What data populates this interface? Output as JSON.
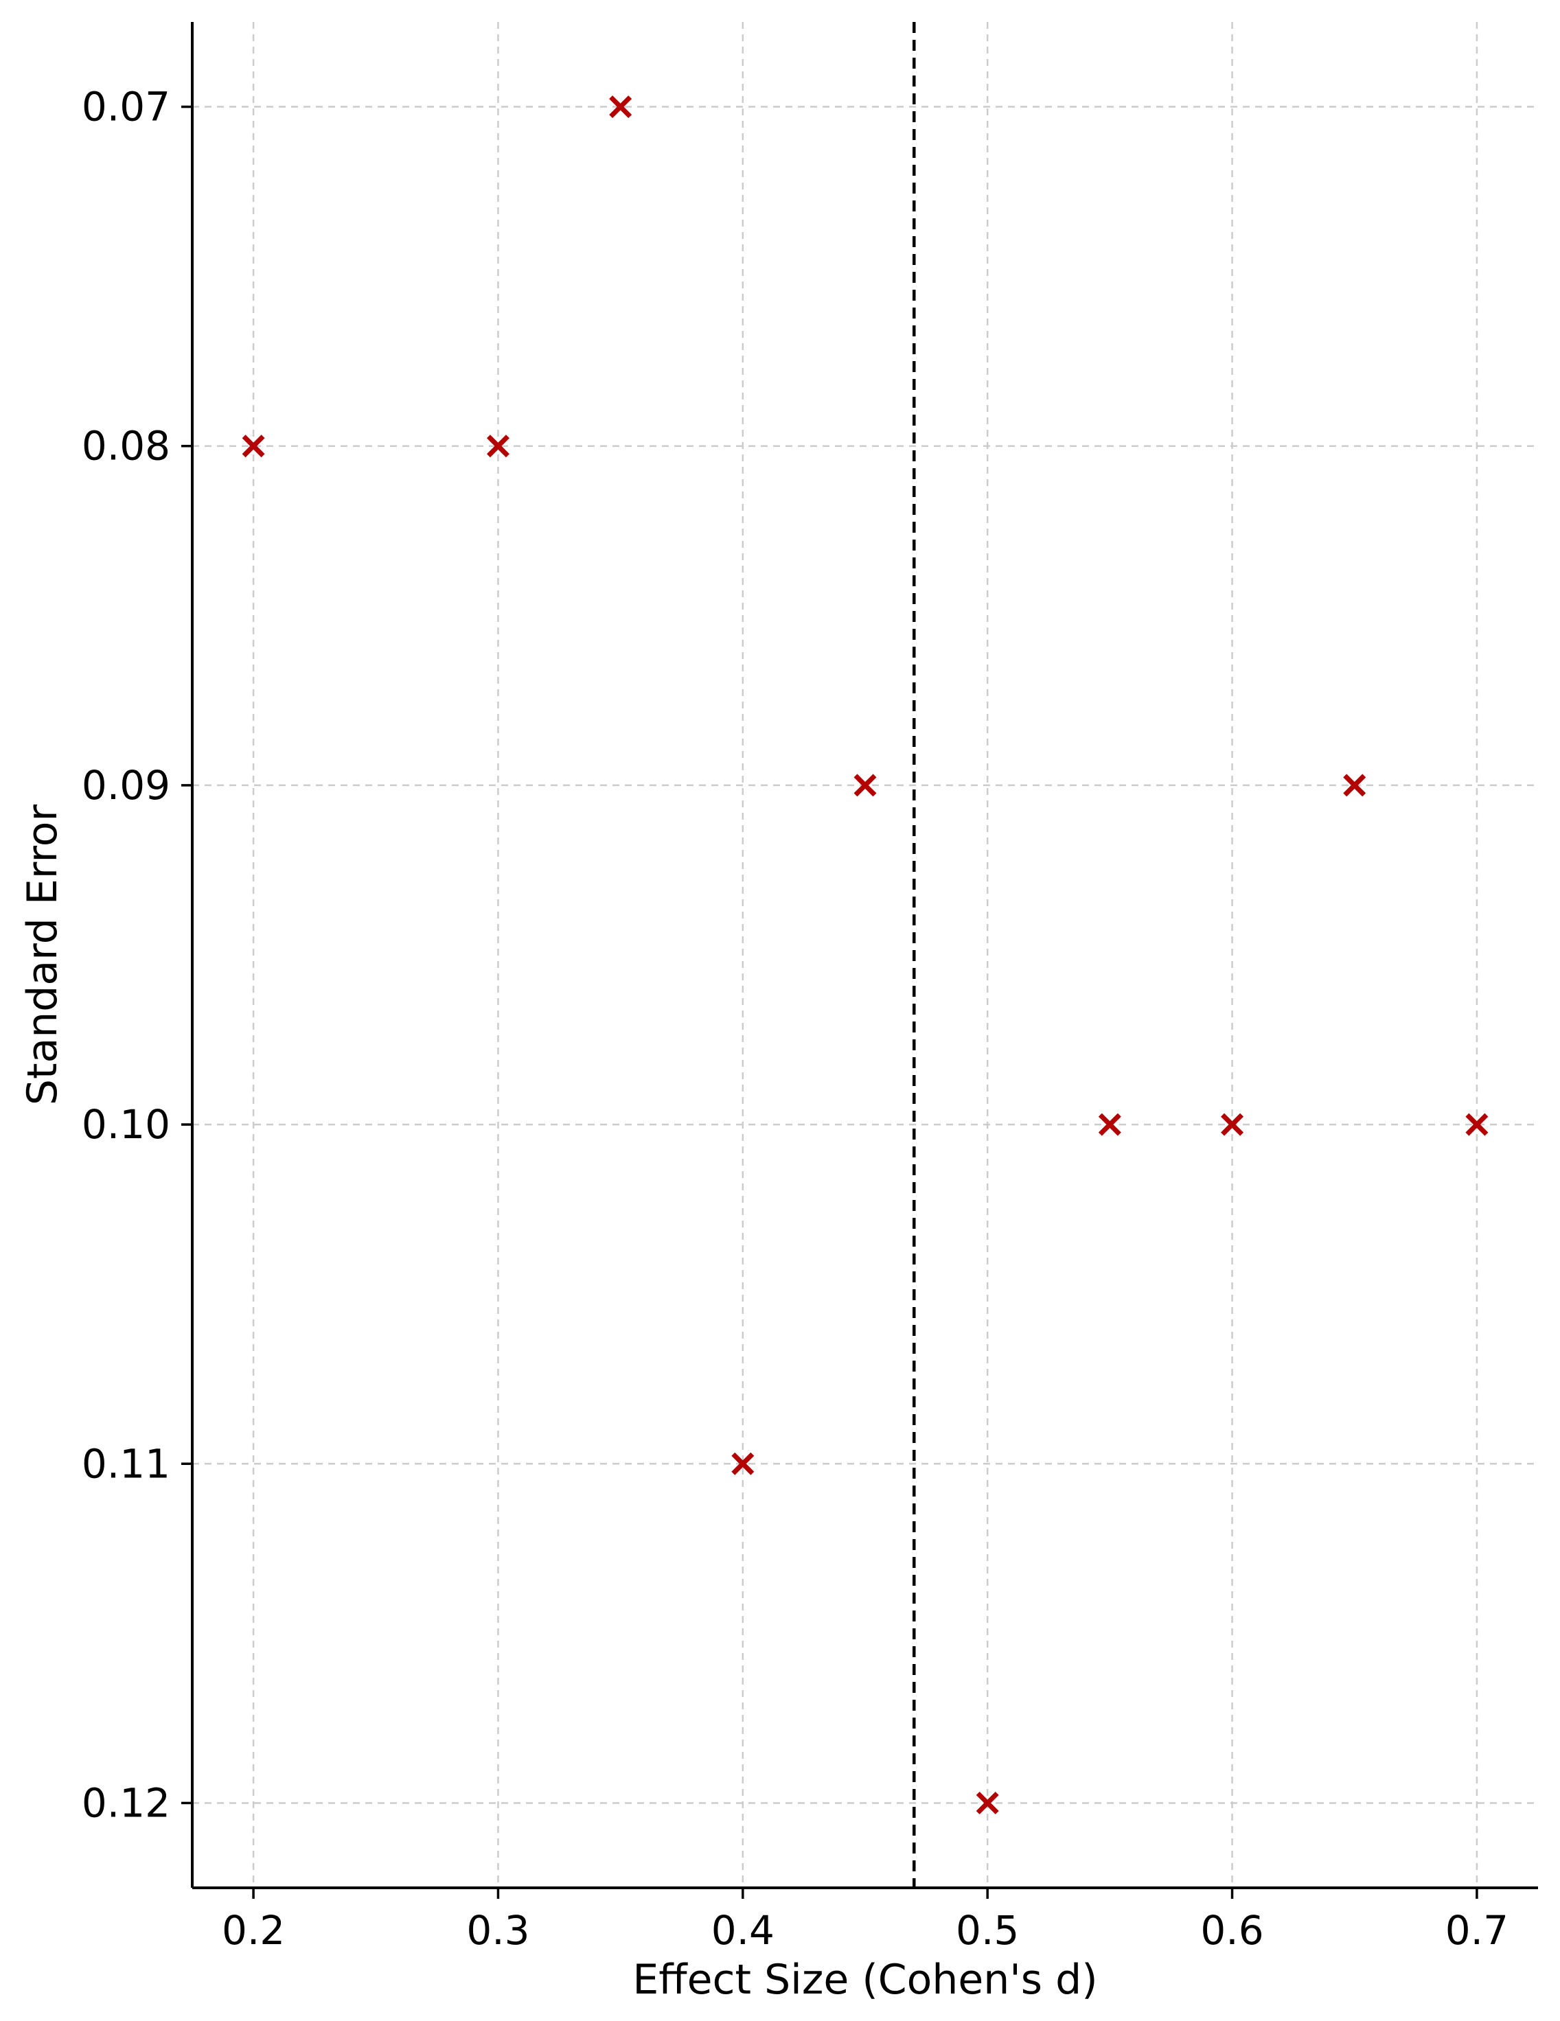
{
  "chart_data": {
    "type": "scatter",
    "title": "",
    "xlabel": "Effect Size (Cohen's d)",
    "ylabel": "Standard Error",
    "xlim": [
      0.175,
      0.725
    ],
    "ylim": [
      0.1225,
      0.0675
    ],
    "y_inverted": true,
    "grid": true,
    "xticks": [
      0.2,
      0.3,
      0.4,
      0.5,
      0.6,
      0.7
    ],
    "xtick_labels": [
      "0.2",
      "0.3",
      "0.4",
      "0.5",
      "0.6",
      "0.7"
    ],
    "yticks": [
      0.07,
      0.08,
      0.09,
      0.1,
      0.11,
      0.12
    ],
    "ytick_labels": [
      "0.07",
      "0.08",
      "0.09",
      "0.10",
      "0.11",
      "0.12"
    ],
    "reference_line": {
      "axis": "x",
      "value": 0.47,
      "style": "dashed",
      "color": "#000000"
    },
    "series": [
      {
        "marker": "x",
        "color": "#b30000",
        "points": [
          {
            "x": 0.2,
            "y": 0.08
          },
          {
            "x": 0.3,
            "y": 0.08
          },
          {
            "x": 0.35,
            "y": 0.07
          },
          {
            "x": 0.4,
            "y": 0.11
          },
          {
            "x": 0.45,
            "y": 0.09
          },
          {
            "x": 0.5,
            "y": 0.12
          },
          {
            "x": 0.55,
            "y": 0.1
          },
          {
            "x": 0.6,
            "y": 0.1
          },
          {
            "x": 0.65,
            "y": 0.09
          },
          {
            "x": 0.7,
            "y": 0.1
          }
        ]
      }
    ]
  }
}
